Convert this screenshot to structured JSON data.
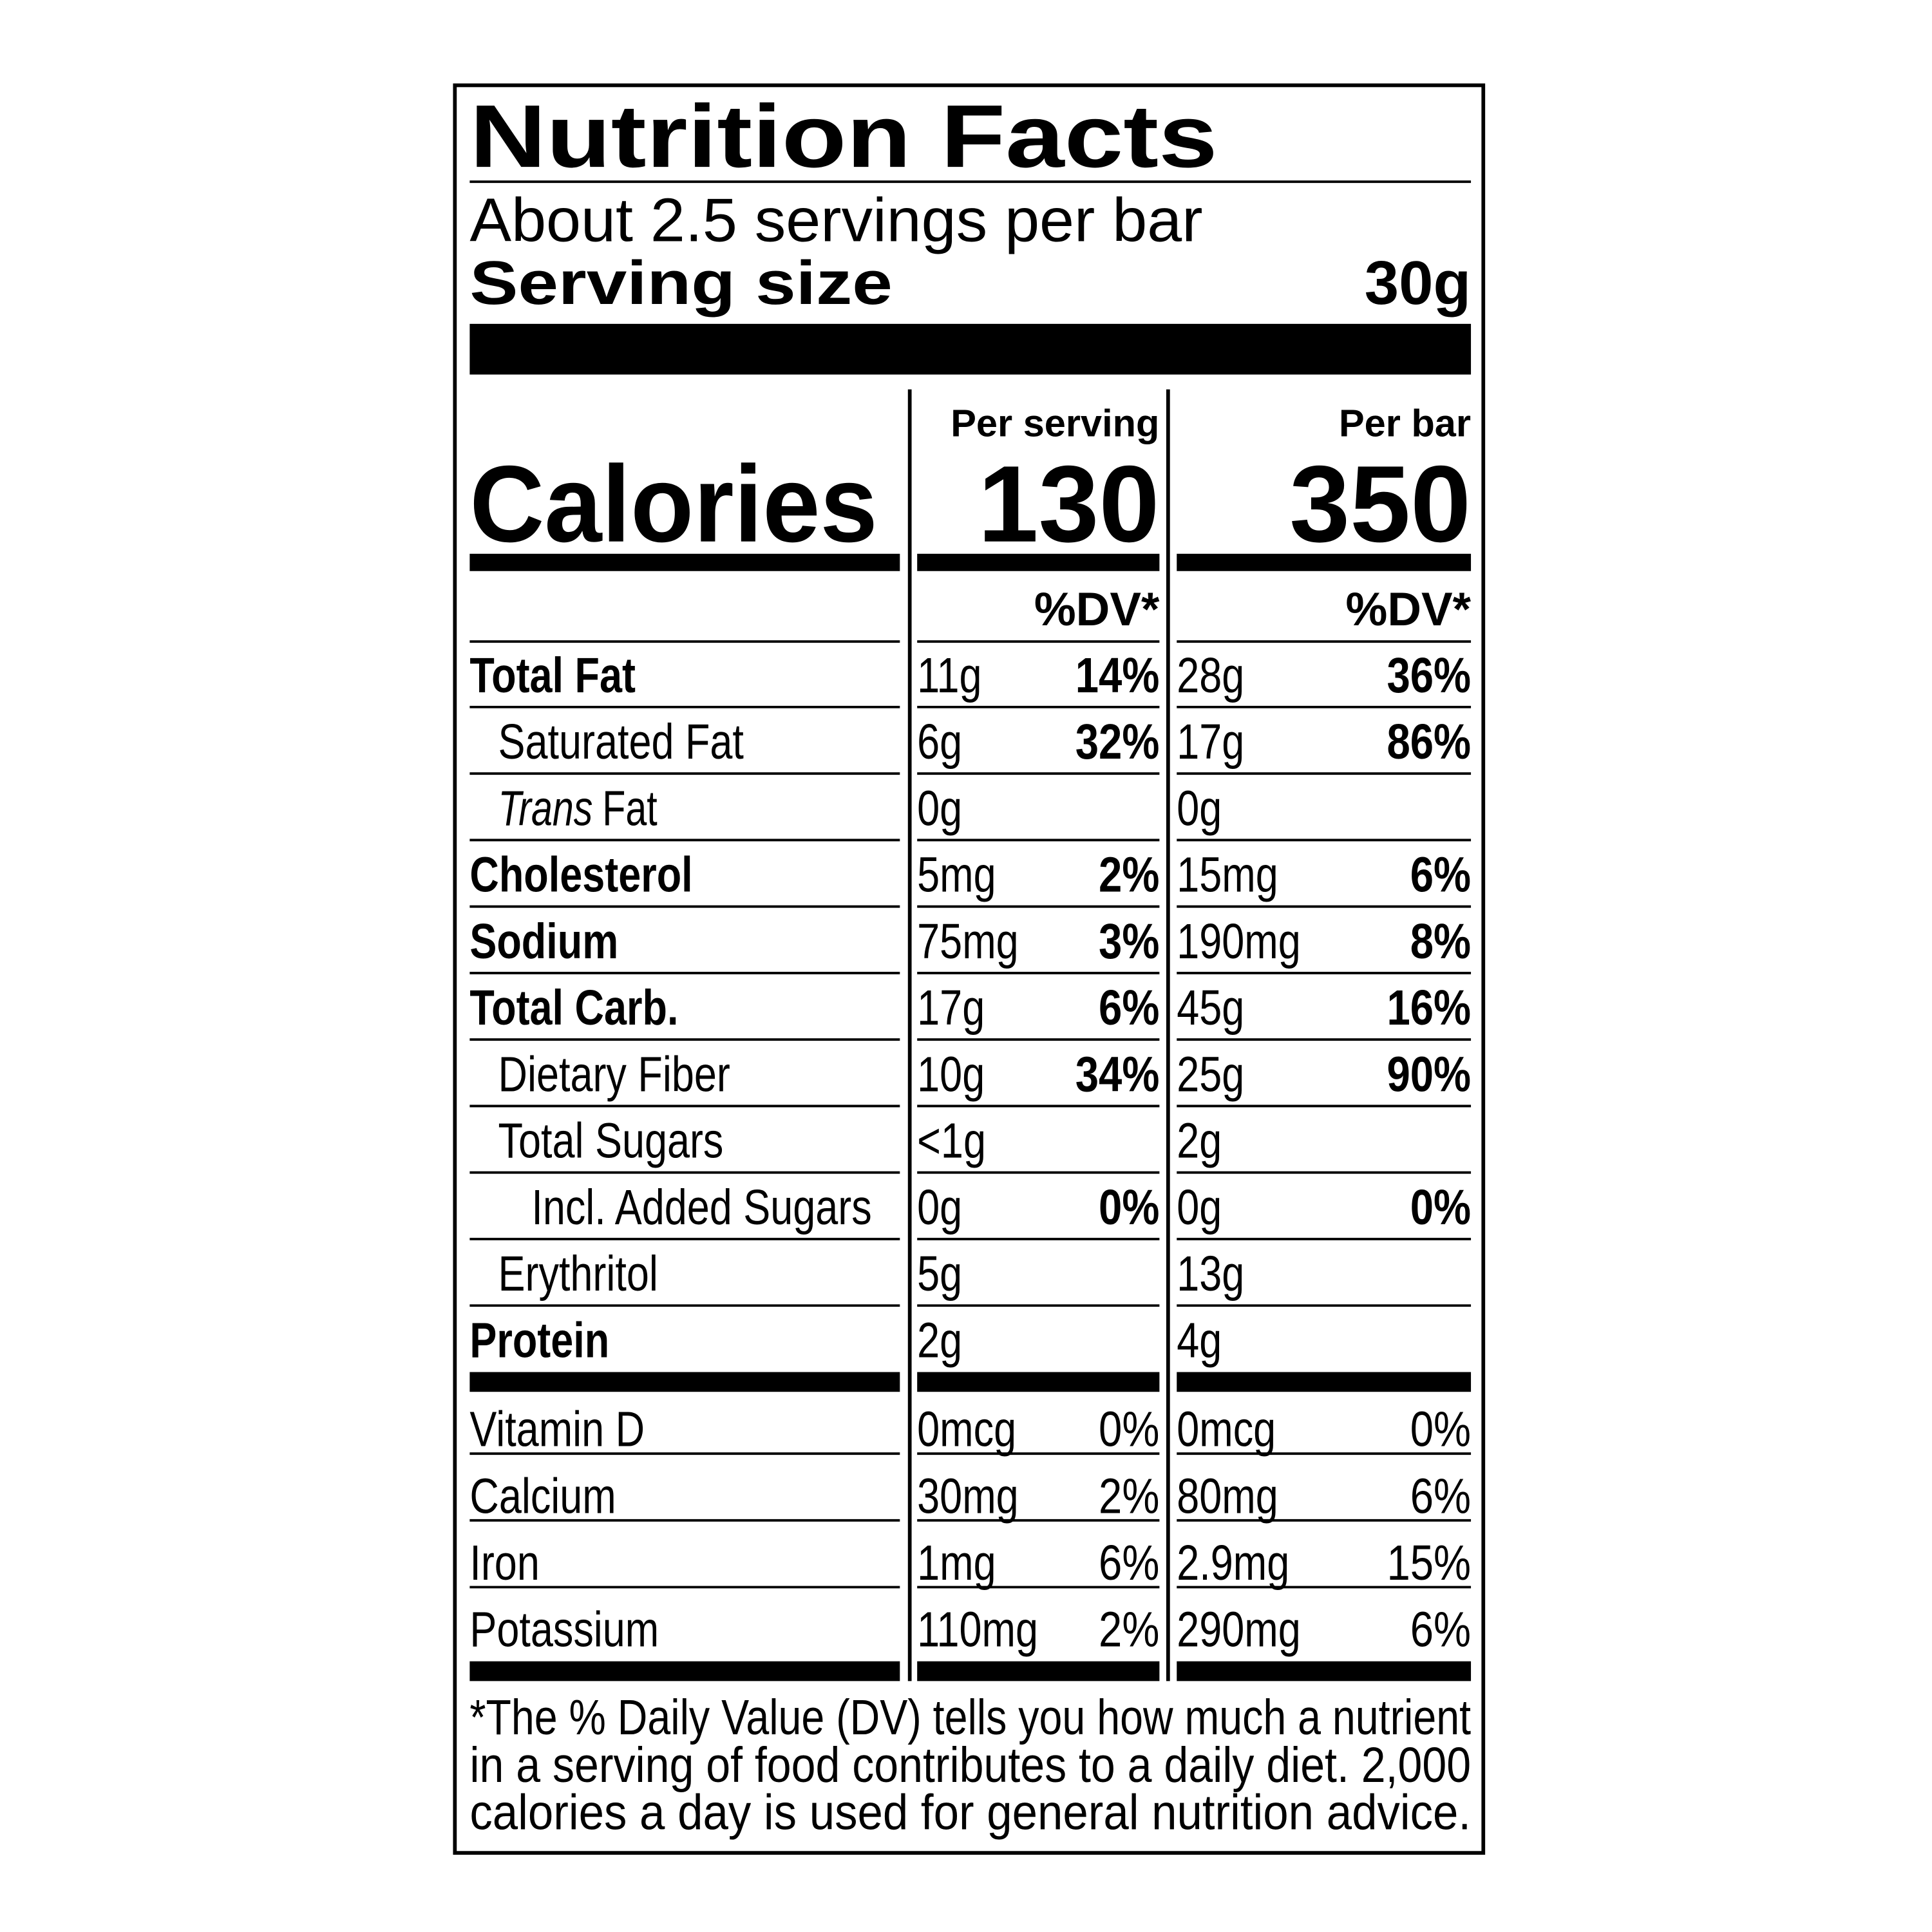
{
  "header": {
    "title": "Nutrition Facts",
    "servings": "About 2.5 servings per bar",
    "serving_size_label": "Serving size",
    "serving_size": "30g"
  },
  "columns": {
    "per_serving": "Per serving",
    "per_bar": "Per bar"
  },
  "calories": {
    "label": "Calories",
    "per_serving": "130",
    "per_bar": "350"
  },
  "dv_header": [
    "%DV*",
    "%DV*"
  ],
  "nutrients": [
    {
      "name": "Total Fat",
      "level": 0,
      "bold": true,
      "serving": [
        "11g",
        "14%"
      ],
      "bar": [
        "28g",
        "36%"
      ]
    },
    {
      "name": "Saturated Fat",
      "level": 1,
      "bold": false,
      "serving": [
        "6g",
        "32%"
      ],
      "bar": [
        "17g",
        "86%"
      ]
    },
    {
      "name_italic": "Trans",
      "name": "Fat",
      "level": 1,
      "bold": false,
      "serving": [
        "0g"
      ],
      "bar": [
        "0g"
      ]
    },
    {
      "name": "Cholesterol",
      "level": 0,
      "bold": true,
      "serving": [
        "5mg",
        "2%"
      ],
      "bar": [
        "15mg",
        "6%"
      ]
    },
    {
      "name": "Sodium",
      "level": 0,
      "bold": true,
      "serving": [
        "75mg",
        "3%"
      ],
      "bar": [
        "190mg",
        "8%"
      ]
    },
    {
      "name": "Total Carb.",
      "level": 0,
      "bold": true,
      "serving": [
        "17g",
        "6%"
      ],
      "bar": [
        "45g",
        "16%"
      ]
    },
    {
      "name": "Dietary Fiber",
      "level": 1,
      "bold": false,
      "serving": [
        "10g",
        "34%"
      ],
      "bar": [
        "25g",
        "90%"
      ]
    },
    {
      "name": "Total Sugars",
      "level": 1,
      "bold": false,
      "serving": [
        "<1g"
      ],
      "bar": [
        "2g"
      ]
    },
    {
      "name": "Incl. Added Sugars",
      "level": 2,
      "bold": false,
      "serving": [
        "0g",
        "0%"
      ],
      "bar": [
        "0g",
        "0%"
      ]
    },
    {
      "name": "Erythritol",
      "level": 1,
      "bold": false,
      "serving": [
        "5g"
      ],
      "bar": [
        "13g"
      ]
    },
    {
      "name": "Protein",
      "level": 0,
      "bold": true,
      "serving": [
        "2g"
      ],
      "bar": [
        "4g"
      ]
    }
  ],
  "vitamins": [
    {
      "name": "Vitamin D",
      "serving": [
        "0mcg",
        "0%"
      ],
      "bar": [
        "0mcg",
        "0%"
      ]
    },
    {
      "name": "Calcium",
      "serving": [
        "30mg",
        "2%"
      ],
      "bar": [
        "80mg",
        "6%"
      ]
    },
    {
      "name": "Iron",
      "serving": [
        "1mg",
        "6%"
      ],
      "bar": [
        "2.9mg",
        "15%"
      ]
    },
    {
      "name": "Potassium",
      "serving": [
        "110mg",
        "2%"
      ],
      "bar": [
        "290mg",
        "6%"
      ]
    }
  ],
  "footnote": [
    "*The % Daily Value (DV) tells you how much a nutrient",
    "in a serving of food contributes to a daily diet. 2,000",
    "calories a day is used for general nutrition advice."
  ]
}
